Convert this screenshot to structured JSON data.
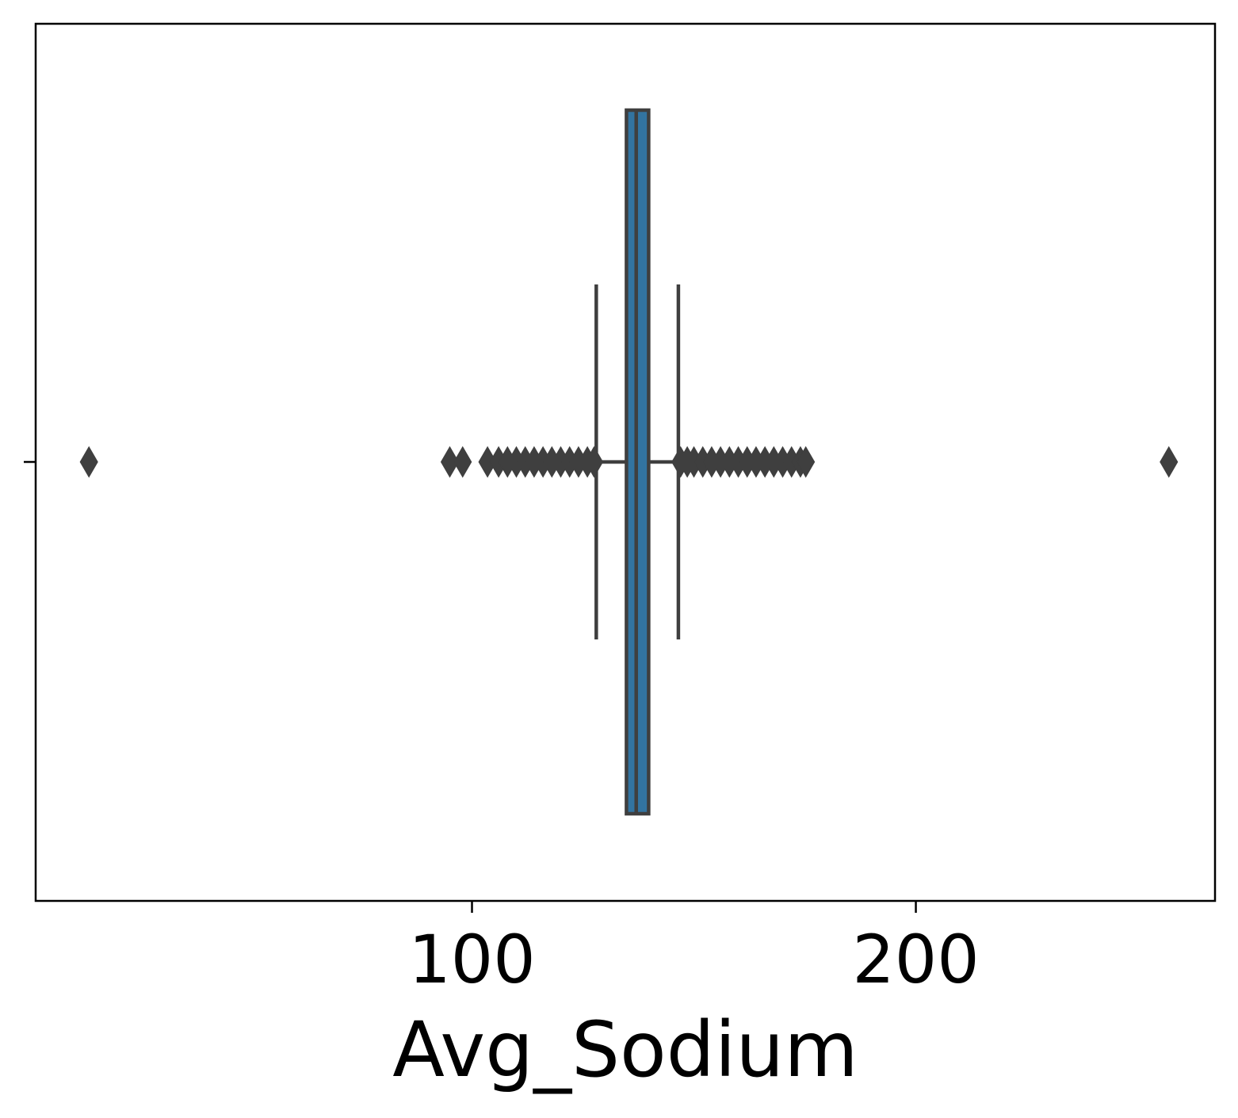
{
  "chart_data": {
    "type": "box",
    "orientation": "horizontal",
    "title": "",
    "xlabel": "Avg_Sodium",
    "ylabel": "",
    "xlim": [
      1.7,
      267.4
    ],
    "x_ticks": [
      100,
      200
    ],
    "x_tick_labels": [
      "100",
      "200"
    ],
    "grid": false,
    "legend": "none",
    "box": {
      "whisker_low": 128.0,
      "q1": 134.8,
      "median": 137.0,
      "q3": 139.8,
      "whisker_high": 146.5
    },
    "outliers": [
      13.7,
      95.0,
      97.9,
      103.5,
      106.0,
      108.0,
      110.0,
      112.0,
      114.0,
      116.0,
      118.0,
      120.0,
      122.0,
      124.0,
      126.0,
      127.5,
      147.0,
      148.5,
      150.0,
      152.0,
      154.0,
      156.0,
      158.0,
      160.0,
      162.0,
      164.0,
      166.0,
      168.0,
      170.0,
      172.0,
      174.0,
      175.2,
      257.0
    ],
    "colors": {
      "box_fill": "#3274a1",
      "line": "#3f3f3f",
      "outlier": "#3f3f3f"
    }
  }
}
